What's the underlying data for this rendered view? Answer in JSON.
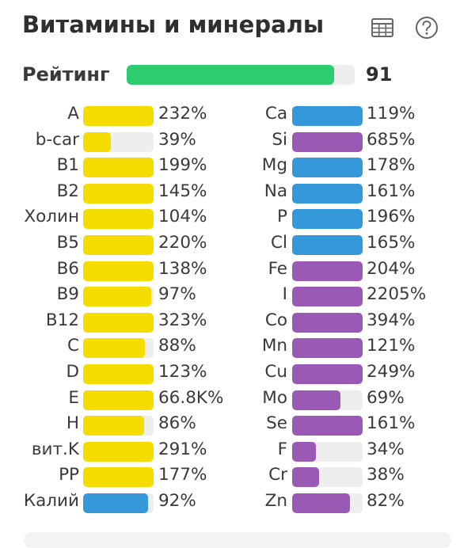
{
  "header": {
    "title": "Витамины и минералы",
    "table_icon": "table-grid-icon",
    "help_icon": "question-circle-icon"
  },
  "rating": {
    "label": "Рейтинг",
    "value": "91",
    "fill_fraction": 0.91,
    "color": "#2ecc71"
  },
  "colors": {
    "vitamin": "#f5dc00",
    "mineral_blue": "#3498db",
    "mineral_purple": "#9b59b6",
    "track": "#eeeeee"
  },
  "vitamins": [
    {
      "label": "A",
      "value": "232%",
      "fill": 1.0,
      "color": "#f5dc00"
    },
    {
      "label": "b-car",
      "value": "39%",
      "fill": 0.39,
      "color": "#f5dc00"
    },
    {
      "label": "B1",
      "value": "199%",
      "fill": 1.0,
      "color": "#f5dc00"
    },
    {
      "label": "B2",
      "value": "145%",
      "fill": 1.0,
      "color": "#f5dc00"
    },
    {
      "label": "Холин",
      "value": "104%",
      "fill": 1.0,
      "color": "#f5dc00"
    },
    {
      "label": "B5",
      "value": "220%",
      "fill": 1.0,
      "color": "#f5dc00"
    },
    {
      "label": "B6",
      "value": "138%",
      "fill": 1.0,
      "color": "#f5dc00"
    },
    {
      "label": "B9",
      "value": "97%",
      "fill": 0.97,
      "color": "#f5dc00"
    },
    {
      "label": "B12",
      "value": "323%",
      "fill": 1.0,
      "color": "#f5dc00"
    },
    {
      "label": "C",
      "value": "88%",
      "fill": 0.88,
      "color": "#f5dc00"
    },
    {
      "label": "D",
      "value": "123%",
      "fill": 1.0,
      "color": "#f5dc00"
    },
    {
      "label": "E",
      "value": "66.8K%",
      "fill": 1.0,
      "color": "#f5dc00"
    },
    {
      "label": "H",
      "value": "86%",
      "fill": 0.86,
      "color": "#f5dc00"
    },
    {
      "label": "вит.K",
      "value": "291%",
      "fill": 1.0,
      "color": "#f5dc00"
    },
    {
      "label": "PP",
      "value": "177%",
      "fill": 1.0,
      "color": "#f5dc00"
    },
    {
      "label": "Калий",
      "value": "92%",
      "fill": 0.92,
      "color": "#3498db"
    }
  ],
  "minerals": [
    {
      "label": "Ca",
      "value": "119%",
      "fill": 1.0,
      "color": "#3498db"
    },
    {
      "label": "Si",
      "value": "685%",
      "fill": 1.0,
      "color": "#9b59b6"
    },
    {
      "label": "Mg",
      "value": "178%",
      "fill": 1.0,
      "color": "#3498db"
    },
    {
      "label": "Na",
      "value": "161%",
      "fill": 1.0,
      "color": "#3498db"
    },
    {
      "label": "P",
      "value": "196%",
      "fill": 1.0,
      "color": "#3498db"
    },
    {
      "label": "Cl",
      "value": "165%",
      "fill": 1.0,
      "color": "#3498db"
    },
    {
      "label": "Fe",
      "value": "204%",
      "fill": 1.0,
      "color": "#9b59b6"
    },
    {
      "label": "I",
      "value": "2205%",
      "fill": 1.0,
      "color": "#9b59b6"
    },
    {
      "label": "Co",
      "value": "394%",
      "fill": 1.0,
      "color": "#9b59b6"
    },
    {
      "label": "Mn",
      "value": "121%",
      "fill": 1.0,
      "color": "#9b59b6"
    },
    {
      "label": "Cu",
      "value": "249%",
      "fill": 1.0,
      "color": "#9b59b6"
    },
    {
      "label": "Mo",
      "value": "69%",
      "fill": 0.69,
      "color": "#9b59b6"
    },
    {
      "label": "Se",
      "value": "161%",
      "fill": 1.0,
      "color": "#9b59b6"
    },
    {
      "label": "F",
      "value": "34%",
      "fill": 0.34,
      "color": "#9b59b6"
    },
    {
      "label": "Cr",
      "value": "38%",
      "fill": 0.38,
      "color": "#9b59b6"
    },
    {
      "label": "Zn",
      "value": "82%",
      "fill": 0.82,
      "color": "#9b59b6"
    }
  ]
}
